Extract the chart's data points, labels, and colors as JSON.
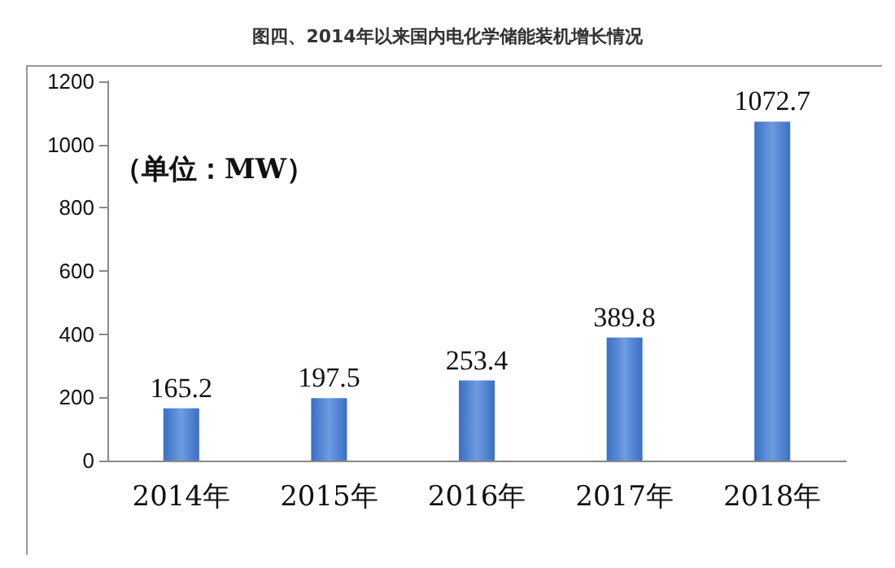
{
  "chart_data": {
    "type": "bar",
    "title": "图四、2014年以来国内电化学储能装机增长情况",
    "annotations": [
      "（单位：MW）"
    ],
    "categories": [
      "2014年",
      "2015年",
      "2016年",
      "2017年",
      "2018年"
    ],
    "values": [
      165.2,
      197.5,
      253.4,
      389.8,
      1072.7
    ],
    "color": "#3a6fc4",
    "ylim": [
      0,
      1200
    ],
    "yticks": [
      0,
      200,
      400,
      600,
      800,
      1000,
      1200
    ],
    "data_labels": true,
    "grid": false
  }
}
